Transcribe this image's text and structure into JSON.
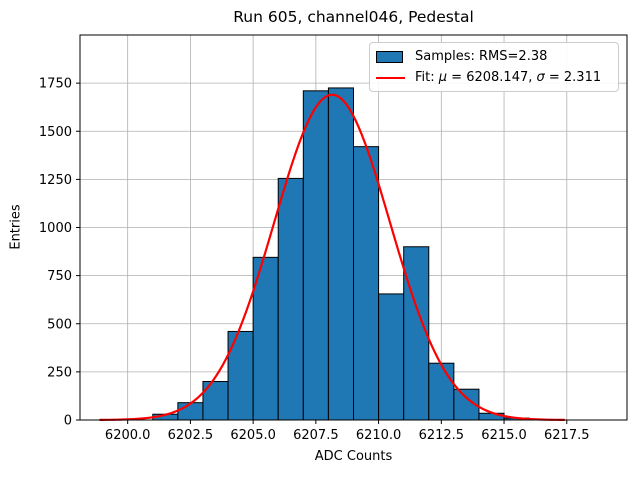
{
  "chart_data": {
    "type": "histogram",
    "title": "Run 605, channel046, Pedestal",
    "xlabel": "ADC Counts",
    "ylabel": "Entries",
    "bin_start": 6201,
    "bin_width": 1,
    "counts": [
      30,
      90,
      200,
      460,
      845,
      1255,
      1710,
      1725,
      1420,
      655,
      900,
      295,
      160,
      35,
      10
    ],
    "rms": 2.38,
    "fit": {
      "mu": 6208.147,
      "sigma": 2.311,
      "amplitude": 1690,
      "x_min": 6198.906,
      "x_max": 6217.391
    },
    "xlim": [
      6198.1,
      6219.9
    ],
    "ylim": [
      0,
      2000
    ],
    "xticks": [
      6200.0,
      6202.5,
      6205.0,
      6207.5,
      6210.0,
      6212.5,
      6215.0,
      6217.5
    ],
    "xtick_labels": [
      "6200.0",
      "6202.5",
      "6205.0",
      "6207.5",
      "6210.0",
      "6212.5",
      "6215.0",
      "6217.5"
    ],
    "yticks": [
      0,
      250,
      500,
      750,
      1000,
      1250,
      1500,
      1750
    ],
    "ytick_labels": [
      "0",
      "250",
      "500",
      "750",
      "1000",
      "1250",
      "1500",
      "1750"
    ],
    "grid": true,
    "legend_position": "upper right"
  },
  "legend": {
    "samples_label": "Samples: RMS=2.38",
    "fit_prefix": "Fit: ",
    "mu_symbol": "μ",
    "mu_value": " = 6208.147, ",
    "sigma_symbol": "σ",
    "sigma_value": " = 2.311"
  },
  "colors": {
    "bar_fill": "#1f77b4",
    "bar_edge": "#000000",
    "fit_line": "#ff0000",
    "grid": "#b0b0b0",
    "axes": "#000000",
    "legend_border": "#cccccc",
    "background": "#ffffff"
  }
}
